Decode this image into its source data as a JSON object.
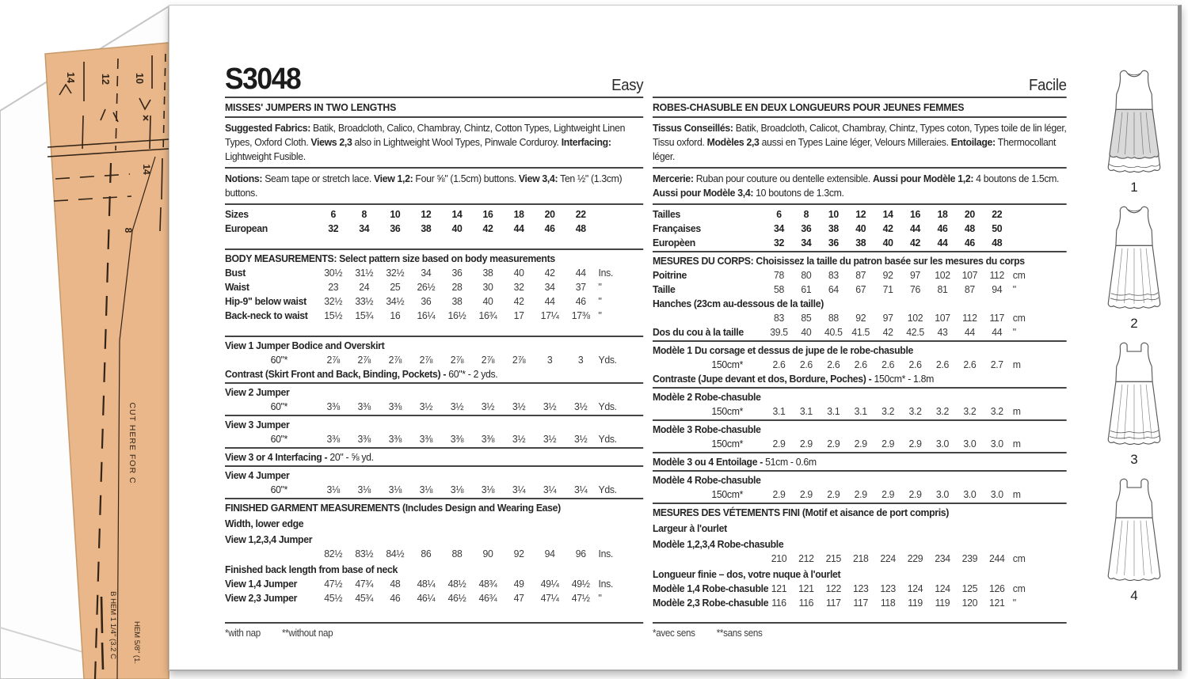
{
  "envelope": {
    "code": "S3048",
    "difficulty_en": "Easy",
    "difficulty_fr": "Facile"
  },
  "colors": {
    "tissue": "#e9b78a",
    "rule": "#444444",
    "skirt_shade": "#d9d9d9"
  },
  "english": {
    "title": "MISSES' JUMPERS IN TWO LENGTHS",
    "fabrics": [
      {
        "t": "Suggested Fabrics:",
        "b": true
      },
      {
        "t": " Batik, Broadcloth, Calico, Chambray, Chintz, Cotton Types, Lightweight Linen Types, Oxford Cloth. "
      },
      {
        "t": "Views 2,3",
        "b": true
      },
      {
        "t": " also in Lightweight Wool Types, Pinwale Corduroy. "
      },
      {
        "t": "Interfacing:",
        "b": true
      },
      {
        "t": " Lightweight Fusible."
      }
    ],
    "notions": [
      {
        "t": "Notions:",
        "b": true
      },
      {
        "t": " Seam tape or stretch lace. "
      },
      {
        "t": "View 1,2:",
        "b": true
      },
      {
        "t": " Four ⅝\" (1.5cm) buttons. "
      },
      {
        "t": "View 3,4:",
        "b": true
      },
      {
        "t": " Ten ½\" (1.3cm) buttons."
      }
    ],
    "sizes_rows": [
      {
        "label": "Sizes",
        "bold": true,
        "nb": true,
        "values": [
          "6",
          "8",
          "10",
          "12",
          "14",
          "16",
          "18",
          "20",
          "22"
        ],
        "unit": ""
      },
      {
        "label": "European",
        "bold": true,
        "nb": true,
        "values": [
          "32",
          "34",
          "36",
          "38",
          "40",
          "42",
          "44",
          "46",
          "48"
        ],
        "unit": ""
      }
    ],
    "body_heading": "BODY MEASUREMENTS: Select pattern size based on body measurements",
    "body_rows": [
      {
        "label": "Bust",
        "bold": true,
        "values": [
          "30½",
          "31½",
          "32½",
          "34",
          "36",
          "38",
          "40",
          "42",
          "44"
        ],
        "unit": "Ins."
      },
      {
        "label": "Waist",
        "bold": true,
        "values": [
          "23",
          "24",
          "25",
          "26½",
          "28",
          "30",
          "32",
          "34",
          "37"
        ],
        "unit": "\""
      },
      {
        "label": "Hip-9\" below waist",
        "bold": true,
        "values": [
          "32½",
          "33½",
          "34½",
          "36",
          "38",
          "40",
          "42",
          "44",
          "46"
        ],
        "unit": "\""
      },
      {
        "label": "Back-neck to waist",
        "bold": true,
        "values": [
          "15½",
          "15¾",
          "16",
          "16¼",
          "16½",
          "16¾",
          "17",
          "17¼",
          "17⅜"
        ],
        "unit": "\""
      }
    ],
    "view1_heading": "View 1 Jumper Bodice and Overskirt",
    "view1_row": {
      "label": "60\"*",
      "indent": true,
      "values": [
        "2⅞",
        "2⅞",
        "2⅞",
        "2⅞",
        "2⅞",
        "2⅞",
        "2⅞",
        "3",
        "3"
      ],
      "unit": "Yds."
    },
    "contrast_note": [
      {
        "t": "Contrast (Skirt Front and Back, Binding, Pockets) - ",
        "b": true
      },
      {
        "t": "60\"* - 2 yds."
      }
    ],
    "view2_heading": "View 2 Jumper",
    "view2_row": {
      "label": "60\"*",
      "indent": true,
      "values": [
        "3⅜",
        "3⅜",
        "3⅜",
        "3½",
        "3½",
        "3½",
        "3½",
        "3½",
        "3½"
      ],
      "unit": "Yds."
    },
    "view3_heading": "View 3 Jumper",
    "view3_row": {
      "label": "60\"*",
      "indent": true,
      "values": [
        "3⅜",
        "3⅜",
        "3⅜",
        "3⅜",
        "3⅜",
        "3⅜",
        "3½",
        "3½",
        "3½"
      ],
      "unit": "Yds."
    },
    "interfacing_note": [
      {
        "t": "View 3 or 4 Interfacing - ",
        "b": true
      },
      {
        "t": "20\" - ⅝ yd."
      }
    ],
    "view4_heading": "View 4 Jumper",
    "view4_row": {
      "label": "60\"*",
      "indent": true,
      "values": [
        "3⅛",
        "3⅛",
        "3⅛",
        "3⅛",
        "3⅛",
        "3⅛",
        "3¼",
        "3¼",
        "3¼"
      ],
      "unit": "Yds."
    },
    "finished_heading": "FINISHED GARMENT MEASUREMENTS (Includes Design and Wearing Ease)",
    "finished_sub1": "Width, lower edge",
    "finished_sub2": "View 1,2,3,4 Jumper",
    "finished_width_row": {
      "label": "",
      "values": [
        "82½",
        "83½",
        "84½",
        "86",
        "88",
        "90",
        "92",
        "94",
        "96"
      ],
      "unit": "Ins."
    },
    "finished_sub3": "Finished back length from base of neck",
    "finished_len_rows": [
      {
        "label": "View 1,4 Jumper",
        "bold": true,
        "values": [
          "47½",
          "47¾",
          "48",
          "48¼",
          "48½",
          "48¾",
          "49",
          "49¼",
          "49½"
        ],
        "unit": "Ins."
      },
      {
        "label": "View 2,3 Jumper",
        "bold": true,
        "values": [
          "45½",
          "45¾",
          "46",
          "46¼",
          "46½",
          "46¾",
          "47",
          "47¼",
          "47½"
        ],
        "unit": "\""
      }
    ],
    "footnote1": "*with nap",
    "footnote2": "**without nap"
  },
  "french": {
    "title": "ROBES-CHASUBLE EN DEUX LONGUEURS POUR JEUNES FEMMES",
    "fabrics": [
      {
        "t": "Tissus Conseillés:",
        "b": true
      },
      {
        "t": " Batik, Broadcloth, Calicot, Chambray, Chintz, Types coton, Types toile de lin léger, Tissu oxford. "
      },
      {
        "t": "Modèles 2,3",
        "b": true
      },
      {
        "t": " aussi en Types Laine léger, Velours Milleraies. "
      },
      {
        "t": "Entoilage:",
        "b": true
      },
      {
        "t": " Thermocollant léger."
      }
    ],
    "notions": [
      {
        "t": "Mercerie:",
        "b": true
      },
      {
        "t": " Ruban pour couture ou dentelle extensible. "
      },
      {
        "t": "Aussi pour Modèle 1,2:",
        "b": true
      },
      {
        "t": " 4 boutons de 1.5cm. "
      },
      {
        "t": "Aussi pour Modèle 3,4:",
        "b": true
      },
      {
        "t": " 10 boutons de 1.3cm."
      }
    ],
    "sizes_rows": [
      {
        "label": "Tailles",
        "bold": true,
        "nb": true,
        "values": [
          "6",
          "8",
          "10",
          "12",
          "14",
          "16",
          "18",
          "20",
          "22"
        ],
        "unit": ""
      },
      {
        "label": "Françaises",
        "bold": true,
        "nb": true,
        "values": [
          "34",
          "36",
          "38",
          "40",
          "42",
          "44",
          "46",
          "48",
          "50"
        ],
        "unit": ""
      },
      {
        "label": "Europèen",
        "bold": true,
        "nb": true,
        "values": [
          "32",
          "34",
          "36",
          "38",
          "40",
          "42",
          "44",
          "46",
          "48"
        ],
        "unit": ""
      }
    ],
    "body_heading": "MESURES DU CORPS: Choisissez la taille du patron basée sur les mesures du corps",
    "body_rows": [
      {
        "label": "Poitrine",
        "bold": true,
        "values": [
          "78",
          "80",
          "83",
          "87",
          "92",
          "97",
          "102",
          "107",
          "112"
        ],
        "unit": "cm"
      },
      {
        "label": "Taille",
        "bold": true,
        "values": [
          "58",
          "61",
          "64",
          "67",
          "71",
          "76",
          "81",
          "87",
          "94"
        ],
        "unit": "\""
      },
      {
        "label": "Hanches (23cm au-dessous de la taille)",
        "bold": true,
        "span": true
      },
      {
        "label": "",
        "values": [
          "83",
          "85",
          "88",
          "92",
          "97",
          "102",
          "107",
          "112",
          "117"
        ],
        "unit": "cm"
      },
      {
        "label": "Dos du cou à la taille",
        "bold": true,
        "values": [
          "39.5",
          "40",
          "40.5",
          "41.5",
          "42",
          "42.5",
          "43",
          "44",
          "44"
        ],
        "unit": "\""
      }
    ],
    "view1_heading": "Modèle 1 Du corsage et dessus de jupe de le robe-chasuble",
    "view1_row": {
      "label": "150cm*",
      "indent": true,
      "values": [
        "2.6",
        "2.6",
        "2.6",
        "2.6",
        "2.6",
        "2.6",
        "2.6",
        "2.6",
        "2.7"
      ],
      "unit": "m"
    },
    "contrast_note": [
      {
        "t": "Contraste (Jupe devant et dos, Bordure, Poches) - ",
        "b": true
      },
      {
        "t": "150cm* - 1.8m"
      }
    ],
    "view2_heading": "Modèle 2 Robe-chasuble",
    "view2_row": {
      "label": "150cm*",
      "indent": true,
      "values": [
        "3.1",
        "3.1",
        "3.1",
        "3.1",
        "3.2",
        "3.2",
        "3.2",
        "3.2",
        "3.2"
      ],
      "unit": "m"
    },
    "view3_heading": "Modèle 3 Robe-chasuble",
    "view3_row": {
      "label": "150cm*",
      "indent": true,
      "values": [
        "2.9",
        "2.9",
        "2.9",
        "2.9",
        "2.9",
        "2.9",
        "3.0",
        "3.0",
        "3.0"
      ],
      "unit": "m"
    },
    "interfacing_note": [
      {
        "t": "Modèle 3 ou 4 Entoilage - ",
        "b": true
      },
      {
        "t": "51cm - 0.6m"
      }
    ],
    "view4_heading": "Modèle 4 Robe-chasuble",
    "view4_row": {
      "label": "150cm*",
      "indent": true,
      "values": [
        "2.9",
        "2.9",
        "2.9",
        "2.9",
        "2.9",
        "2.9",
        "3.0",
        "3.0",
        "3.0"
      ],
      "unit": "m"
    },
    "finished_heading": "MESURES DES VÉTEMENTS FINI (Motif et aisance de port compris)",
    "finished_sub1": "Largeur à l'ourlet",
    "finished_sub2": "Modèle 1,2,3,4 Robe-chasuble",
    "finished_width_row": {
      "label": "",
      "values": [
        "210",
        "212",
        "215",
        "218",
        "224",
        "229",
        "234",
        "239",
        "244"
      ],
      "unit": "cm"
    },
    "finished_sub3": "Longueur finie – dos, votre nuque à l'ourlet",
    "finished_len_rows": [
      {
        "label": "Modèle 1,4 Robe-chasuble",
        "bold": true,
        "values": [
          "121",
          "121",
          "122",
          "123",
          "123",
          "124",
          "124",
          "125",
          "126"
        ],
        "unit": "cm"
      },
      {
        "label": "Modèle 2,3 Robe-chasuble",
        "bold": true,
        "values": [
          "116",
          "116",
          "117",
          "117",
          "118",
          "119",
          "119",
          "120",
          "121"
        ],
        "unit": "\""
      }
    ],
    "footnote1": "*avec sens",
    "footnote2": "**sans sens"
  },
  "views": {
    "labels": [
      "1",
      "2",
      "3",
      "4"
    ],
    "variants": [
      "shaded-overskirt-scoop-neck",
      "scoop-neck-hem-tucks",
      "square-neck-hem-band",
      "square-neck-plain"
    ]
  },
  "tissue": {
    "size_labels": [
      "14",
      "12",
      "10",
      "14",
      "8"
    ],
    "cut_text": "CUT HERE FOR C",
    "hem_text_b": "B HEM 1 1/4\" (3.2 C",
    "hem_text": "HEM 5/8\" (1."
  }
}
